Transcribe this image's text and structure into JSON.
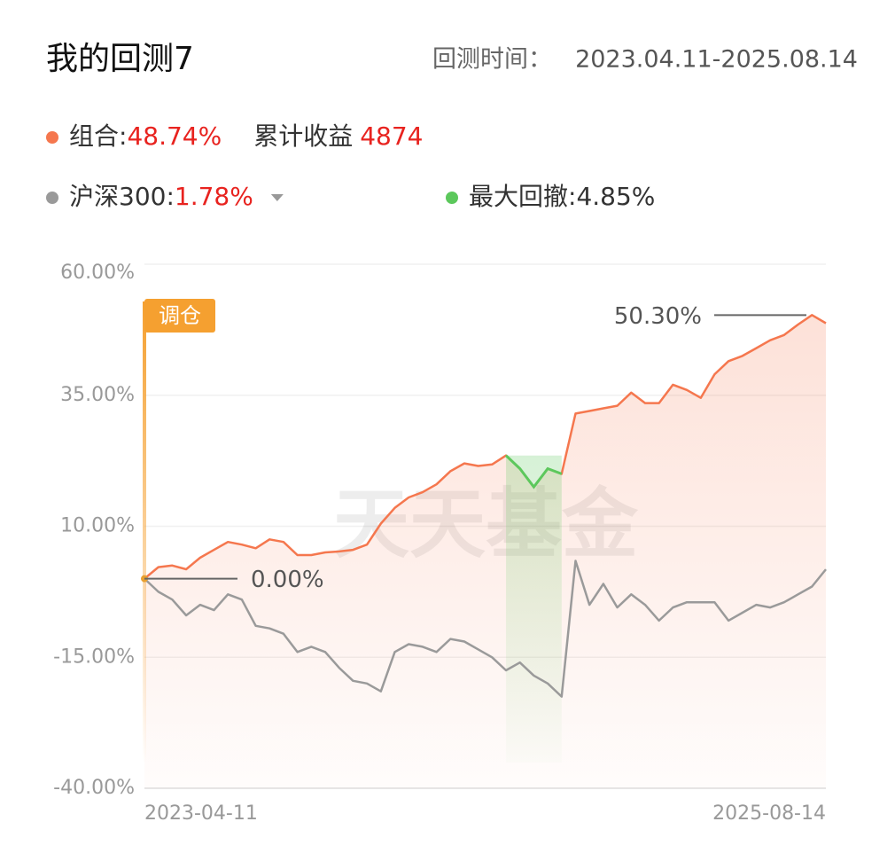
{
  "header": {
    "title": "我的回测7",
    "period_label": "回测时间：",
    "period": "2023.04.11-2025.08.14"
  },
  "summary": {
    "portfolio_return": "48.74%",
    "cumulative_label": "累计收益",
    "cumulative_value": "4874",
    "benchmark_return": "1.78%",
    "drawdown_label": "最大回撤:",
    "drawdown_value": "4.85%",
    "drawdown_color": "#5cc85c"
  },
  "chart_data": {
    "type": "line",
    "categories": [
      "2023-04-11",
      null,
      null,
      null,
      null,
      null,
      null,
      null,
      null,
      null,
      null,
      null,
      null,
      null,
      null,
      null,
      null,
      null,
      null,
      null,
      null,
      null,
      null,
      null,
      null,
      null,
      null,
      null,
      null,
      null,
      null,
      null,
      null,
      null,
      null,
      null,
      null,
      null,
      null,
      null,
      null,
      null,
      null,
      null,
      null,
      null,
      null,
      null,
      null,
      "2025-08-14"
    ],
    "series": [
      {
        "name": "组合:",
        "color": "#f5774e",
        "values": [
          0,
          2.2,
          2.5,
          1.8,
          4,
          5.5,
          7,
          6.5,
          5.8,
          7.5,
          7,
          4.5,
          4.5,
          5,
          5.2,
          5.5,
          6.5,
          10.5,
          13.5,
          15.5,
          16.5,
          18,
          20.5,
          22,
          21.5,
          21.8,
          23.5,
          21,
          17.5,
          21,
          20,
          31.5,
          32,
          32.5,
          33,
          35.5,
          33.5,
          33.5,
          37,
          36,
          34.5,
          39,
          41.5,
          42.5,
          44,
          45.5,
          46.5,
          48.5,
          50.3,
          48.74
        ]
      },
      {
        "name": "沪深300:",
        "color": "#9a9a9a",
        "values": [
          0,
          -2.5,
          -4,
          -7,
          -5,
          -6,
          -3,
          -4,
          -9,
          -9.5,
          -10.5,
          -14,
          -13,
          -14,
          -17,
          -19.5,
          -20,
          -21.5,
          -14,
          -12.5,
          -13,
          -14,
          -11.5,
          -12,
          -13.5,
          -15,
          -17.5,
          -16,
          -18.5,
          -20,
          -22.5,
          3.4,
          -5,
          -1,
          -5.5,
          -3,
          -5,
          -8,
          -5.5,
          -4.5,
          -4.5,
          -4.5,
          -8,
          -6.5,
          -5,
          -5.5,
          -4.5,
          -3,
          -1.5,
          1.78
        ]
      }
    ],
    "drawdown_range": [
      26,
      30
    ],
    "ylim": [
      -40,
      60
    ],
    "yticks": [
      {
        "value": -40,
        "label": "-40.00%"
      },
      {
        "value": -15,
        "label": "-15.00%"
      },
      {
        "value": 10,
        "label": "10.00%"
      },
      {
        "value": 35,
        "label": "35.00%"
      },
      {
        "value": 60,
        "label": "60.00%"
      }
    ],
    "grid": true,
    "annotations": [
      {
        "value": 0,
        "label": "0.00%"
      },
      {
        "value": 50.3,
        "label": "50.30%"
      }
    ],
    "rebalance_label": "调仓",
    "watermark": "天天基金"
  }
}
